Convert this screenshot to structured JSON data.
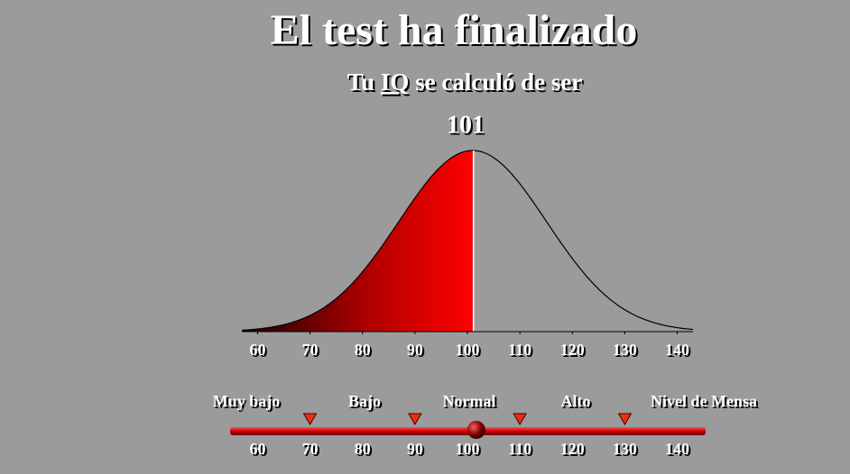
{
  "header": {
    "title": "El test ha finalizado",
    "subtitle": [
      "Tu",
      "IQ",
      "se calculó de ser"
    ]
  },
  "score": 101,
  "curve": {
    "xlim": [
      57,
      143
    ],
    "xticks": [
      60,
      70,
      80,
      90,
      100,
      110,
      120,
      130,
      140
    ]
  },
  "scale": {
    "labels": [
      "Muy bajo",
      "Bajo",
      "Normal",
      "Alto",
      "Nivel de Mensa"
    ],
    "thresholds": [
      70,
      90,
      110,
      130
    ],
    "ticks": [
      60,
      70,
      80,
      90,
      100,
      110,
      120,
      130,
      140
    ]
  }
}
